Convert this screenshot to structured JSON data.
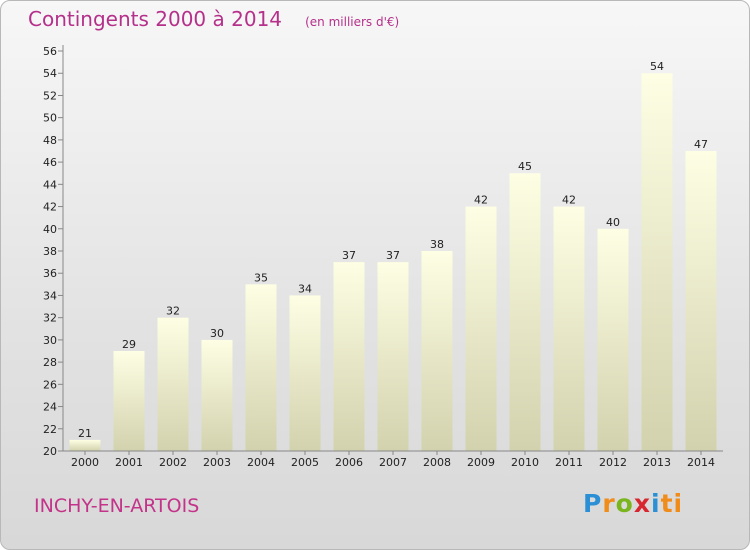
{
  "title": "Contingents 2000 à 2014",
  "subtitle": "(en milliers d'€)",
  "place": "INCHY-EN-ARTOIS",
  "logo": {
    "letters": [
      "P",
      "r",
      "o",
      "x",
      "i",
      "ti"
    ]
  },
  "chart_data": {
    "type": "bar",
    "categories": [
      "2000",
      "2001",
      "2002",
      "2003",
      "2004",
      "2005",
      "2006",
      "2007",
      "2008",
      "2009",
      "2010",
      "2011",
      "2012",
      "2013",
      "2014"
    ],
    "values": [
      21,
      29,
      32,
      30,
      35,
      34,
      37,
      37,
      38,
      42,
      45,
      42,
      40,
      54,
      47
    ],
    "ylim": [
      20,
      56
    ],
    "ytick_step": 2,
    "grid": false,
    "bar_color": "#f8f8d2",
    "bar_shade": "#d4d4b0"
  }
}
